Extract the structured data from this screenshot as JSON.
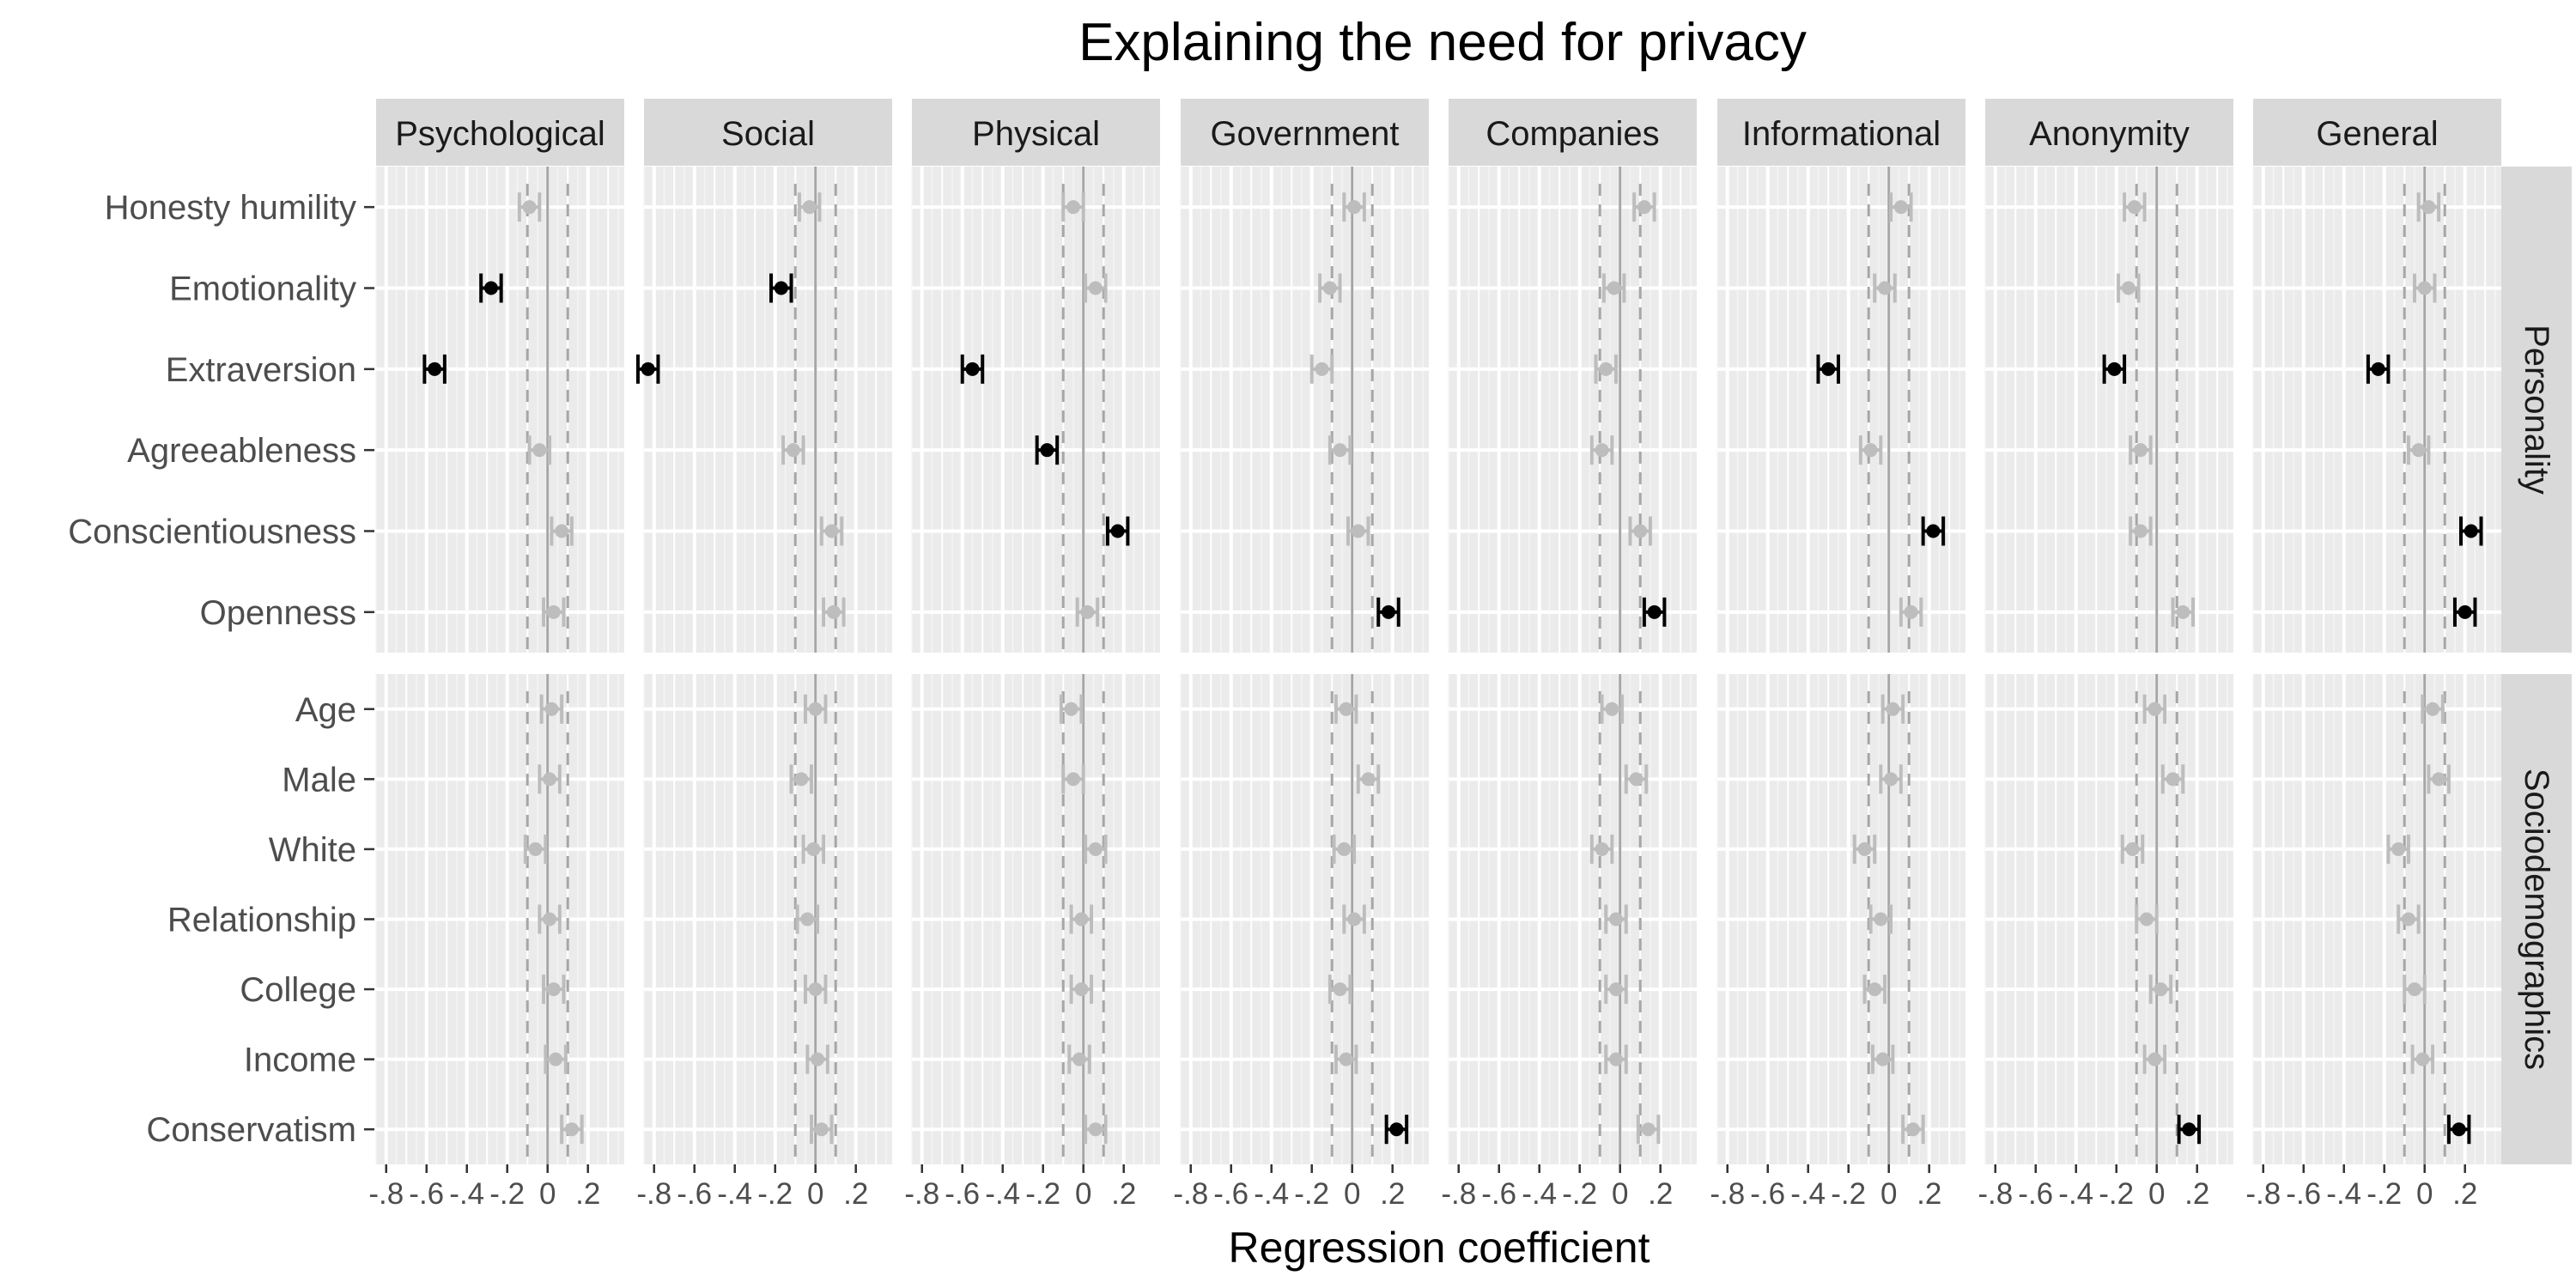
{
  "chart_data": {
    "type": "forest",
    "title": "Explaining the need for privacy",
    "xlabel": "Regression coefficient",
    "ylabel": "",
    "xlim": [
      -0.85,
      0.38
    ],
    "x_ticks": [
      -0.8,
      -0.6,
      -0.4,
      -0.2,
      0,
      0.2
    ],
    "x_tick_labels": [
      "-.8",
      "-.6",
      "-.4",
      "-.2",
      "0",
      ".2"
    ],
    "reference_lines": {
      "solid": 0,
      "dashed": [
        -0.1,
        0.1
      ]
    },
    "ci_halfwidth": 0.05,
    "grid": true,
    "colors": {
      "significant": "#000000",
      "nonsignificant": "#bdbdbd",
      "panel_bg": "#ebebeb",
      "strip_bg": "#d9d9d9"
    },
    "panels": [
      "Psychological",
      "Social",
      "Physical",
      "Government",
      "Companies",
      "Informational",
      "Anonymity",
      "General"
    ],
    "row_groups": [
      {
        "name": "Personality",
        "variables": [
          "Honesty humility",
          "Emotionality",
          "Extraversion",
          "Agreeableness",
          "Conscientiousness",
          "Openness"
        ],
        "estimates": [
          [
            -0.09,
            -0.28,
            -0.56,
            -0.04,
            0.07,
            0.03
          ],
          [
            -0.03,
            -0.17,
            -0.83,
            -0.11,
            0.08,
            0.09
          ],
          [
            -0.05,
            0.06,
            -0.55,
            -0.18,
            0.17,
            0.02
          ],
          [
            0.01,
            -0.11,
            -0.15,
            -0.06,
            0.03,
            0.18
          ],
          [
            0.12,
            -0.03,
            -0.07,
            -0.09,
            0.1,
            0.17
          ],
          [
            0.06,
            -0.02,
            -0.3,
            -0.09,
            0.22,
            0.11
          ],
          [
            -0.11,
            -0.14,
            -0.21,
            -0.08,
            -0.08,
            0.13
          ],
          [
            0.02,
            0.0,
            -0.23,
            -0.03,
            0.23,
            0.2
          ]
        ],
        "significant": [
          [
            false,
            true,
            true,
            false,
            false,
            false
          ],
          [
            false,
            true,
            true,
            false,
            false,
            false
          ],
          [
            false,
            false,
            true,
            true,
            true,
            false
          ],
          [
            false,
            false,
            false,
            false,
            false,
            true
          ],
          [
            false,
            false,
            false,
            false,
            false,
            true
          ],
          [
            false,
            false,
            true,
            false,
            true,
            false
          ],
          [
            false,
            false,
            true,
            false,
            false,
            false
          ],
          [
            false,
            false,
            true,
            false,
            true,
            true
          ]
        ]
      },
      {
        "name": "Sociodemographics",
        "variables": [
          "Age",
          "Male",
          "White",
          "Relationship",
          "College",
          "Income",
          "Conservatism"
        ],
        "estimates": [
          [
            0.02,
            0.01,
            -0.06,
            0.01,
            0.03,
            0.04,
            0.12
          ],
          [
            0.0,
            -0.07,
            -0.01,
            -0.04,
            0.0,
            0.01,
            0.03
          ],
          [
            -0.06,
            -0.05,
            0.06,
            -0.01,
            -0.01,
            -0.02,
            0.06
          ],
          [
            -0.03,
            0.08,
            -0.04,
            0.01,
            -0.06,
            -0.03,
            0.22
          ],
          [
            -0.04,
            0.08,
            -0.09,
            -0.02,
            -0.02,
            -0.02,
            0.14
          ],
          [
            0.02,
            0.01,
            -0.12,
            -0.04,
            -0.07,
            -0.03,
            0.12
          ],
          [
            -0.01,
            0.08,
            -0.12,
            -0.05,
            0.02,
            -0.01,
            0.16
          ],
          [
            0.04,
            0.07,
            -0.13,
            -0.08,
            -0.05,
            -0.01,
            0.17
          ]
        ],
        "significant": [
          [
            false,
            false,
            false,
            false,
            false,
            false,
            false
          ],
          [
            false,
            false,
            false,
            false,
            false,
            false,
            false
          ],
          [
            false,
            false,
            false,
            false,
            false,
            false,
            false
          ],
          [
            false,
            false,
            false,
            false,
            false,
            false,
            true
          ],
          [
            false,
            false,
            false,
            false,
            false,
            false,
            false
          ],
          [
            false,
            false,
            false,
            false,
            false,
            false,
            false
          ],
          [
            false,
            false,
            false,
            false,
            false,
            false,
            true
          ],
          [
            false,
            false,
            false,
            false,
            false,
            false,
            true
          ]
        ]
      }
    ]
  }
}
